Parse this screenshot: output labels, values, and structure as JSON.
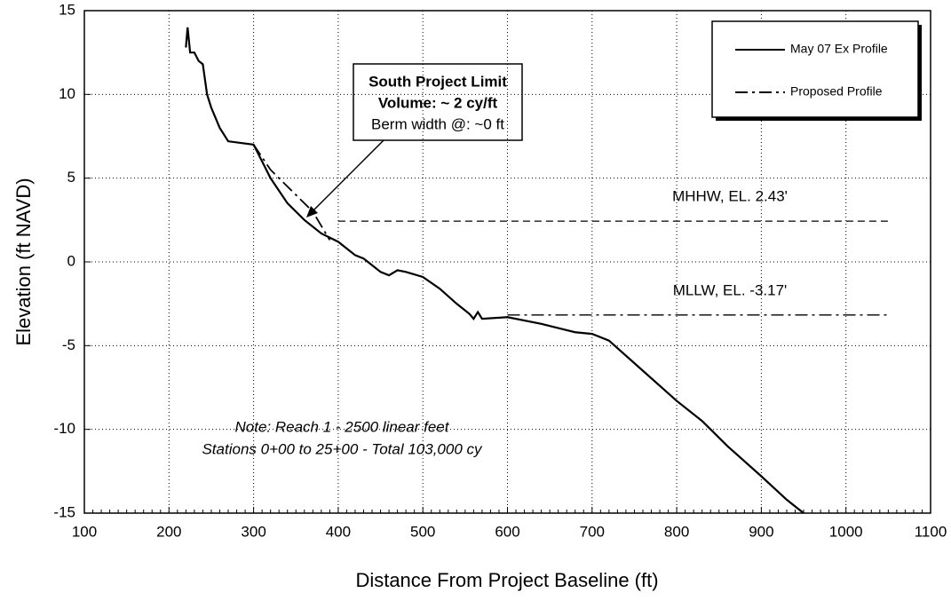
{
  "chart_data": {
    "type": "line",
    "xlabel": "Distance From Project Baseline (ft)",
    "ylabel": "Elevation (ft NAVD)",
    "xlim": [
      100,
      1100
    ],
    "xticks": [
      100,
      200,
      300,
      400,
      500,
      600,
      700,
      800,
      900,
      1000,
      1100
    ],
    "ylim": [
      -15,
      15
    ],
    "yticks": [
      -15,
      -10,
      -5,
      0,
      5,
      10,
      15
    ],
    "grid": true,
    "legend": "upper right",
    "series": [
      {
        "name": "May 07 Ex Profile",
        "color": "#000000",
        "style": "solid",
        "x": [
          220,
          222,
          225,
          230,
          235,
          240,
          245,
          250,
          260,
          270,
          300,
          310,
          320,
          340,
          360,
          380,
          400,
          420,
          430,
          440,
          450,
          460,
          470,
          480,
          500,
          520,
          540,
          555,
          560,
          565,
          570,
          600,
          640,
          680,
          700,
          720,
          760,
          800,
          830,
          860,
          900,
          930,
          950
        ],
        "values": [
          12.8,
          14,
          12.5,
          12.5,
          12,
          11.8,
          10,
          9.2,
          8,
          7.2,
          7,
          6,
          5,
          3.5,
          2.5,
          1.7,
          1.2,
          0.4,
          0.2,
          -0.2,
          -0.6,
          -0.8,
          -0.5,
          -0.6,
          -0.9,
          -1.6,
          -2.5,
          -3.1,
          -3.4,
          -3.0,
          -3.4,
          -3.3,
          -3.7,
          -4.2,
          -4.3,
          -4.7,
          -6.5,
          -8.3,
          -9.5,
          -11,
          -12.8,
          -14.2,
          -15
        ]
      },
      {
        "name": "Proposed Profile",
        "color": "#000000",
        "style": "dashdot",
        "x": [
          300,
          320,
          350,
          370,
          390
        ],
        "values": [
          7,
          5.5,
          4,
          3,
          1.3
        ]
      }
    ],
    "reference_lines": [
      {
        "label": "MHHW, EL. 2.43'",
        "value": 2.43,
        "x": [
          400,
          1050
        ],
        "style": "dashed"
      },
      {
        "label": "MLLW, EL. -3.17'",
        "value": -3.17,
        "x": [
          600,
          1050
        ],
        "style": "dashdot"
      }
    ],
    "callout": {
      "lines": [
        "South Project Limit",
        "Volume: ~ 2 cy/ft",
        "Berm width @:  ~0 ft"
      ]
    },
    "note": [
      "Note:  Reach 1 - 2500 linear feet",
      "Stations 0+00 to 25+00 - Total 103,000 cy"
    ]
  }
}
